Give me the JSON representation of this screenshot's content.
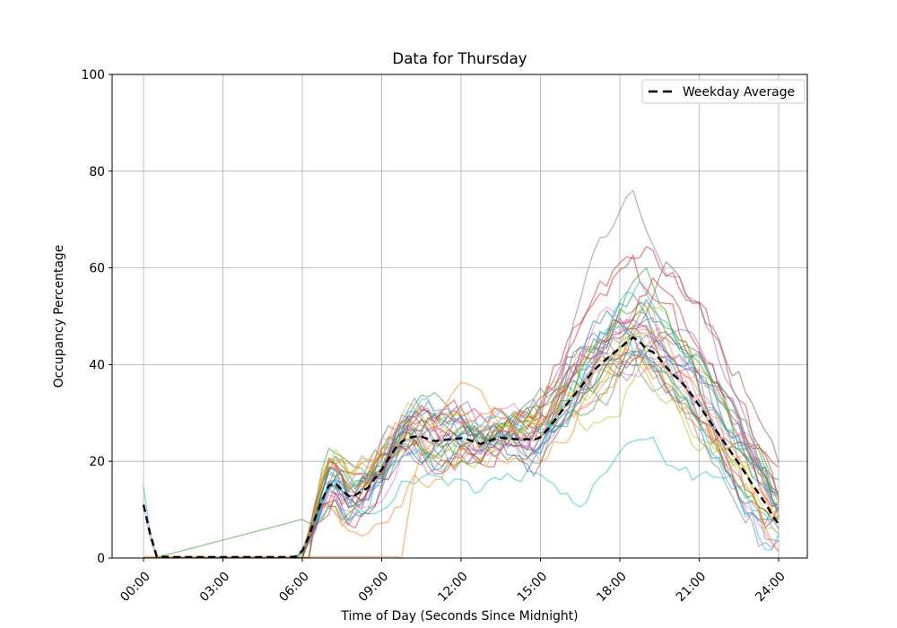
{
  "chart_data": {
    "type": "line",
    "title": "Data for Thursday",
    "xlabel": "Time of Day (Seconds Since Midnight)",
    "ylabel": "Occupancy Percentage",
    "ylim": [
      0,
      100
    ],
    "xlim_hours": [
      -1.19,
      25.08
    ],
    "grid": true,
    "y_ticks": [
      0,
      20,
      40,
      60,
      80,
      100
    ],
    "x_ticks": {
      "hours": [
        0,
        3,
        6,
        9,
        12,
        15,
        18,
        21,
        24
      ],
      "labels": [
        "00:00",
        "03:00",
        "06:00",
        "09:00",
        "12:00",
        "15:00",
        "18:00",
        "21:00",
        "24:00"
      ]
    },
    "legend": {
      "position": "upper right",
      "entries": [
        {
          "label": "Weekday Average",
          "color": "#000000",
          "linestyle": "dashed"
        }
      ]
    },
    "average_series": {
      "name": "Weekday Average",
      "color": "#000000",
      "linestyle": "dashed",
      "points": [
        [
          0,
          11
        ],
        [
          0.25,
          5
        ],
        [
          0.5,
          0.3
        ],
        [
          1,
          0.2
        ],
        [
          1.5,
          0.2
        ],
        [
          2,
          0.2
        ],
        [
          2.5,
          0.2
        ],
        [
          3,
          0.2
        ],
        [
          3.5,
          0.2
        ],
        [
          4,
          0.2
        ],
        [
          4.5,
          0.2
        ],
        [
          5,
          0.2
        ],
        [
          5.5,
          0.2
        ],
        [
          5.75,
          0.3
        ],
        [
          6,
          1.5
        ],
        [
          6.25,
          4.5
        ],
        [
          6.5,
          8.5
        ],
        [
          6.75,
          12
        ],
        [
          7,
          15
        ],
        [
          7.25,
          15.5
        ],
        [
          7.5,
          14
        ],
        [
          7.75,
          12.8
        ],
        [
          8,
          13
        ],
        [
          8.25,
          13.8
        ],
        [
          8.5,
          14.6
        ],
        [
          8.75,
          16.5
        ],
        [
          9,
          18.3
        ],
        [
          9.25,
          20.5
        ],
        [
          9.5,
          22.5
        ],
        [
          9.75,
          24
        ],
        [
          10,
          24.8
        ],
        [
          10.25,
          25.1
        ],
        [
          10.5,
          25.1
        ],
        [
          10.75,
          24.6
        ],
        [
          11,
          24.2
        ],
        [
          11.25,
          24.3
        ],
        [
          11.5,
          24.5
        ],
        [
          11.75,
          24.6
        ],
        [
          12,
          24.8
        ],
        [
          12.25,
          24.5
        ],
        [
          12.5,
          24
        ],
        [
          12.75,
          23.6
        ],
        [
          13,
          24.1
        ],
        [
          13.25,
          24.6
        ],
        [
          13.5,
          24.9
        ],
        [
          13.75,
          24.7
        ],
        [
          14,
          24.6
        ],
        [
          14.25,
          24.5
        ],
        [
          14.5,
          24.6
        ],
        [
          14.75,
          24.4
        ],
        [
          15,
          25
        ],
        [
          15.25,
          26.5
        ],
        [
          15.5,
          28.2
        ],
        [
          15.75,
          30
        ],
        [
          16,
          31.9
        ],
        [
          16.25,
          33.5
        ],
        [
          16.5,
          35.2
        ],
        [
          16.75,
          37
        ],
        [
          17,
          38.7
        ],
        [
          17.25,
          40
        ],
        [
          17.5,
          41.2
        ],
        [
          17.75,
          42.3
        ],
        [
          18,
          43.4
        ],
        [
          18.25,
          44.6
        ],
        [
          18.5,
          45.6
        ],
        [
          18.75,
          44.8
        ],
        [
          19,
          43.2
        ],
        [
          19.25,
          42.6
        ],
        [
          19.5,
          41.2
        ],
        [
          19.75,
          39.5
        ],
        [
          20,
          38
        ],
        [
          20.25,
          36.8
        ],
        [
          20.5,
          35.3
        ],
        [
          20.75,
          33.5
        ],
        [
          21,
          31.5
        ],
        [
          21.25,
          29.5
        ],
        [
          21.5,
          27.5
        ],
        [
          21.75,
          25.5
        ],
        [
          22,
          23.5
        ],
        [
          22.25,
          21.5
        ],
        [
          22.5,
          19.5
        ],
        [
          22.75,
          17.5
        ],
        [
          23,
          15.3
        ],
        [
          23.25,
          13.3
        ],
        [
          23.5,
          11.3
        ],
        [
          23.75,
          9
        ],
        [
          24,
          7
        ]
      ]
    },
    "day_traces": {
      "approximation": true,
      "count": 36,
      "alpha": 0.55,
      "line_width": 1.3,
      "palette": [
        "#1f77b4",
        "#ff7f0e",
        "#2ca02c",
        "#d62728",
        "#9467bd",
        "#8c564b",
        "#e377c2",
        "#7f7f7f",
        "#bcbd22",
        "#17becf"
      ],
      "param_fields": [
        "color_index",
        "plateau_scale",
        "peak_scale",
        "peak_shift_hours",
        "start_spike_value",
        "late_start_hour",
        "end_floor",
        "noise_amp",
        "seed"
      ],
      "params": [
        [
          0,
          1.05,
          1.0,
          0.3,
          0,
          0,
          0,
          1.0,
          11
        ],
        [
          1,
          0.85,
          0.95,
          -0.2,
          0,
          0,
          5,
          1.1,
          22
        ],
        [
          2,
          1.15,
          1.05,
          0.6,
          0,
          0,
          0,
          0.9,
          33
        ],
        [
          3,
          1.2,
          1.45,
          0.4,
          0,
          0,
          3,
          1.0,
          44
        ],
        [
          4,
          1.0,
          1.6,
          -0.1,
          0,
          0,
          0,
          0.9,
          55
        ],
        [
          5,
          1.1,
          1.35,
          1.2,
          0,
          0,
          0,
          1.0,
          66
        ],
        [
          6,
          1.05,
          0.95,
          0.8,
          0,
          0,
          10,
          1.0,
          77
        ],
        [
          7,
          0.95,
          1.0,
          -0.4,
          0,
          0,
          0,
          1.2,
          88
        ],
        [
          8,
          1.1,
          1.0,
          0.1,
          0,
          0,
          0,
          1.0,
          99
        ],
        [
          9,
          0.7,
          0.45,
          0.5,
          14.8,
          0,
          2,
          0.8,
          110
        ],
        [
          0,
          0.9,
          1.05,
          -0.6,
          0,
          0,
          8,
          1.0,
          121
        ],
        [
          1,
          1.0,
          0.9,
          0.2,
          0,
          9.75,
          0,
          1.0,
          132
        ],
        [
          2,
          1.0,
          0.95,
          0,
          0,
          -1,
          0,
          0.9,
          143
        ],
        [
          3,
          1.1,
          1.1,
          -0.3,
          0,
          0,
          0,
          1.1,
          154
        ],
        [
          4,
          1.2,
          1.15,
          0.5,
          0,
          0,
          0,
          1.0,
          165
        ],
        [
          5,
          0.9,
          1.0,
          0.9,
          0,
          0,
          0,
          1.0,
          176
        ],
        [
          6,
          1.15,
          1.05,
          -0.2,
          11.2,
          0,
          0,
          1.0,
          187
        ],
        [
          7,
          1.0,
          0.9,
          0.4,
          0,
          0,
          0,
          1.3,
          198
        ],
        [
          8,
          0.85,
          1.1,
          0.1,
          0,
          0,
          0,
          1.0,
          209
        ],
        [
          9,
          1.05,
          1.0,
          -0.5,
          0,
          0,
          0,
          1.1,
          220
        ],
        [
          0,
          1.1,
          1.15,
          0.2,
          0,
          0,
          0,
          1.0,
          231
        ],
        [
          1,
          1.2,
          1.05,
          0.6,
          0,
          0,
          7,
          1.0,
          242
        ],
        [
          2,
          0.95,
          1.2,
          0.3,
          0,
          0,
          0,
          1.0,
          253
        ],
        [
          3,
          1.05,
          1.25,
          -0.2,
          0,
          0,
          0,
          1.2,
          264
        ],
        [
          4,
          0.9,
          1.1,
          0.7,
          0,
          0,
          0,
          1.0,
          275
        ],
        [
          5,
          1.1,
          0.95,
          -0.4,
          0,
          0,
          0,
          1.0,
          286
        ],
        [
          6,
          1.0,
          1.1,
          0.1,
          0,
          0,
          0,
          1.1,
          297
        ],
        [
          7,
          0.9,
          1.05,
          0.5,
          0,
          0,
          0,
          1.0,
          308
        ],
        [
          8,
          1.15,
          0.9,
          -0.3,
          0,
          0,
          4,
          1.0,
          319
        ],
        [
          9,
          1.0,
          1.15,
          0.2,
          0,
          0,
          0,
          0.9,
          330
        ],
        [
          0,
          0.95,
          1.1,
          0.8,
          0,
          0,
          0,
          1.1,
          341
        ],
        [
          1,
          1.1,
          1.0,
          -0.1,
          0,
          0,
          0,
          1.0,
          352
        ],
        [
          2,
          1.05,
          1.15,
          0.4,
          0,
          0,
          0,
          1.0,
          363
        ],
        [
          3,
          0.95,
          1.3,
          0.6,
          0,
          0,
          0,
          1.0,
          374
        ],
        [
          4,
          1.15,
          1.05,
          -0.5,
          0,
          0,
          0,
          1.2,
          385
        ],
        [
          8,
          1.0,
          0.85,
          0.3,
          0,
          0,
          0,
          1.0,
          396
        ]
      ]
    },
    "style": {
      "grid_color": "#b0b0b0",
      "spine_color": "#000000",
      "background": "#ffffff",
      "legend_edge_color": "#cccccc"
    }
  }
}
